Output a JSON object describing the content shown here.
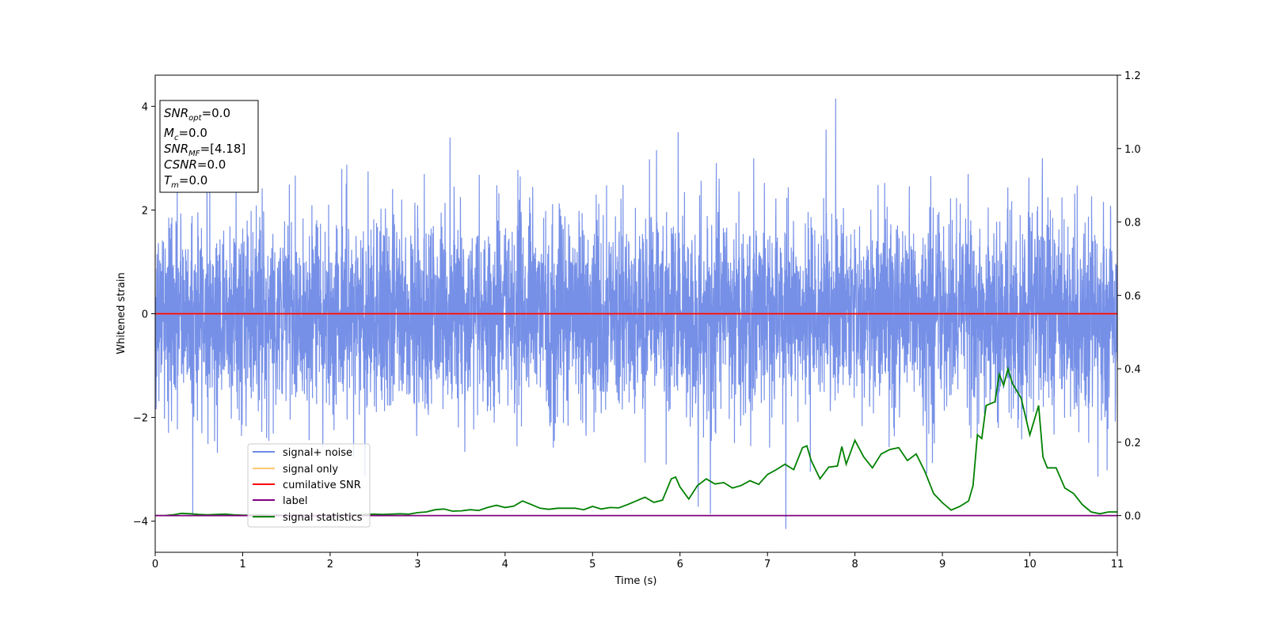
{
  "chart_data": {
    "type": "line",
    "xlabel": "Time (s)",
    "ylabel": "Whitened strain",
    "x_range": [
      0,
      11
    ],
    "xlim": [
      0,
      11
    ],
    "ylim": [
      -4.6,
      4.6
    ],
    "y2lim": [
      -0.1,
      1.2
    ],
    "x_ticks": [
      "0",
      "1",
      "2",
      "3",
      "4",
      "5",
      "6",
      "7",
      "8",
      "9",
      "10",
      "11"
    ],
    "y_ticks": [
      "−4",
      "−2",
      "0",
      "2",
      "4"
    ],
    "y2_ticks": [
      "0.0",
      "0.2",
      "0.4",
      "0.6",
      "0.8",
      "1.0",
      "1.2"
    ],
    "grid": false,
    "legend_position": "lower-left",
    "series": [
      {
        "name": "signal+ noise",
        "color": "#6f8ae6",
        "axis": "left",
        "kind": "noise",
        "std": 0.95,
        "min": -4.15,
        "max": 4.15,
        "notable_spikes": [
          [
            7.78,
            4.15
          ],
          [
            7.21,
            -4.15
          ],
          [
            3.37,
            3.4
          ],
          [
            5.98,
            3.5
          ],
          [
            0.43,
            -3.85
          ],
          [
            7.67,
            3.55
          ]
        ]
      },
      {
        "name": "signal only",
        "color": "#ffc870",
        "axis": "left",
        "x": [
          0,
          11
        ],
        "values": [
          0,
          0
        ]
      },
      {
        "name": "cumilative SNR",
        "color": "#ff0000",
        "axis": "left",
        "x": [
          0,
          11
        ],
        "values": [
          0,
          0
        ]
      },
      {
        "name": "label",
        "color": "#800080",
        "axis": "right",
        "x": [
          0,
          11
        ],
        "values": [
          0,
          0
        ]
      },
      {
        "name": "signal statistics",
        "color": "#008000",
        "axis": "right",
        "x": [
          0,
          0.1,
          0.2,
          0.3,
          0.4,
          0.5,
          0.6,
          0.7,
          0.8,
          0.9,
          1.0,
          1.1,
          1.2,
          1.3,
          1.4,
          1.5,
          1.6,
          1.7,
          1.8,
          1.9,
          2.0,
          2.1,
          2.2,
          2.3,
          2.4,
          2.5,
          2.6,
          2.7,
          2.8,
          2.9,
          3.0,
          3.1,
          3.2,
          3.3,
          3.4,
          3.5,
          3.6,
          3.7,
          3.8,
          3.9,
          4.0,
          4.1,
          4.2,
          4.3,
          4.4,
          4.5,
          4.6,
          4.7,
          4.8,
          4.9,
          5.0,
          5.1,
          5.2,
          5.3,
          5.4,
          5.5,
          5.6,
          5.7,
          5.8,
          5.9,
          5.95,
          6.0,
          6.1,
          6.2,
          6.3,
          6.4,
          6.5,
          6.6,
          6.7,
          6.8,
          6.9,
          7.0,
          7.1,
          7.2,
          7.3,
          7.4,
          7.45,
          7.5,
          7.6,
          7.7,
          7.8,
          7.85,
          7.9,
          8.0,
          8.1,
          8.2,
          8.3,
          8.4,
          8.5,
          8.6,
          8.7,
          8.8,
          8.9,
          9.0,
          9.1,
          9.2,
          9.3,
          9.35,
          9.4,
          9.45,
          9.5,
          9.6,
          9.65,
          9.7,
          9.75,
          9.8,
          9.9,
          10.0,
          10.1,
          10.15,
          10.2,
          10.3,
          10.4,
          10.5,
          10.6,
          10.7,
          10.8,
          10.9,
          11.0
        ],
        "values": [
          0.0,
          0.0,
          0.002,
          0.006,
          0.005,
          0.003,
          0.002,
          0.003,
          0.004,
          0.002,
          0.001,
          0.001,
          0.002,
          0.001,
          0.001,
          0.0,
          0.001,
          0.001,
          0.0,
          0.0,
          0.001,
          0.002,
          0.001,
          0.002,
          0.003,
          0.004,
          0.003,
          0.004,
          0.005,
          0.004,
          0.008,
          0.01,
          0.016,
          0.018,
          0.012,
          0.013,
          0.016,
          0.014,
          0.022,
          0.028,
          0.022,
          0.026,
          0.04,
          0.03,
          0.02,
          0.017,
          0.02,
          0.02,
          0.02,
          0.016,
          0.025,
          0.018,
          0.022,
          0.021,
          0.03,
          0.04,
          0.05,
          0.036,
          0.042,
          0.1,
          0.105,
          0.078,
          0.045,
          0.082,
          0.1,
          0.086,
          0.09,
          0.075,
          0.082,
          0.095,
          0.085,
          0.112,
          0.125,
          0.14,
          0.125,
          0.185,
          0.19,
          0.15,
          0.1,
          0.132,
          0.135,
          0.188,
          0.14,
          0.205,
          0.16,
          0.13,
          0.168,
          0.18,
          0.185,
          0.15,
          0.168,
          0.12,
          0.06,
          0.035,
          0.015,
          0.025,
          0.04,
          0.082,
          0.22,
          0.21,
          0.3,
          0.31,
          0.385,
          0.355,
          0.4,
          0.36,
          0.32,
          0.22,
          0.3,
          0.16,
          0.13,
          0.13,
          0.075,
          0.06,
          0.03,
          0.01,
          0.005,
          0.01,
          0.01
        ]
      }
    ]
  },
  "legend": {
    "items": [
      {
        "label": "signal+ noise",
        "color": "#6f8ae6"
      },
      {
        "label": "signal only",
        "color": "#ffc870"
      },
      {
        "label": "cumilative SNR",
        "color": "#ff0000"
      },
      {
        "label": "label",
        "color": "#800080"
      },
      {
        "label": "signal statistics",
        "color": "#008000"
      }
    ]
  },
  "info_box": {
    "snr_opt": {
      "base": "SNR",
      "sub": "opt",
      "val": "=0.0"
    },
    "mc": {
      "base": "M",
      "sub": "c",
      "val": "=0.0"
    },
    "snr_mf": {
      "base": "SNR",
      "sub": "MF",
      "val": "=[4.18]"
    },
    "csnr": {
      "base": "CSNR",
      "sub": "",
      "val": "=0.0"
    },
    "tm": {
      "base": "T",
      "sub": "m",
      "val": "=0.0"
    }
  }
}
